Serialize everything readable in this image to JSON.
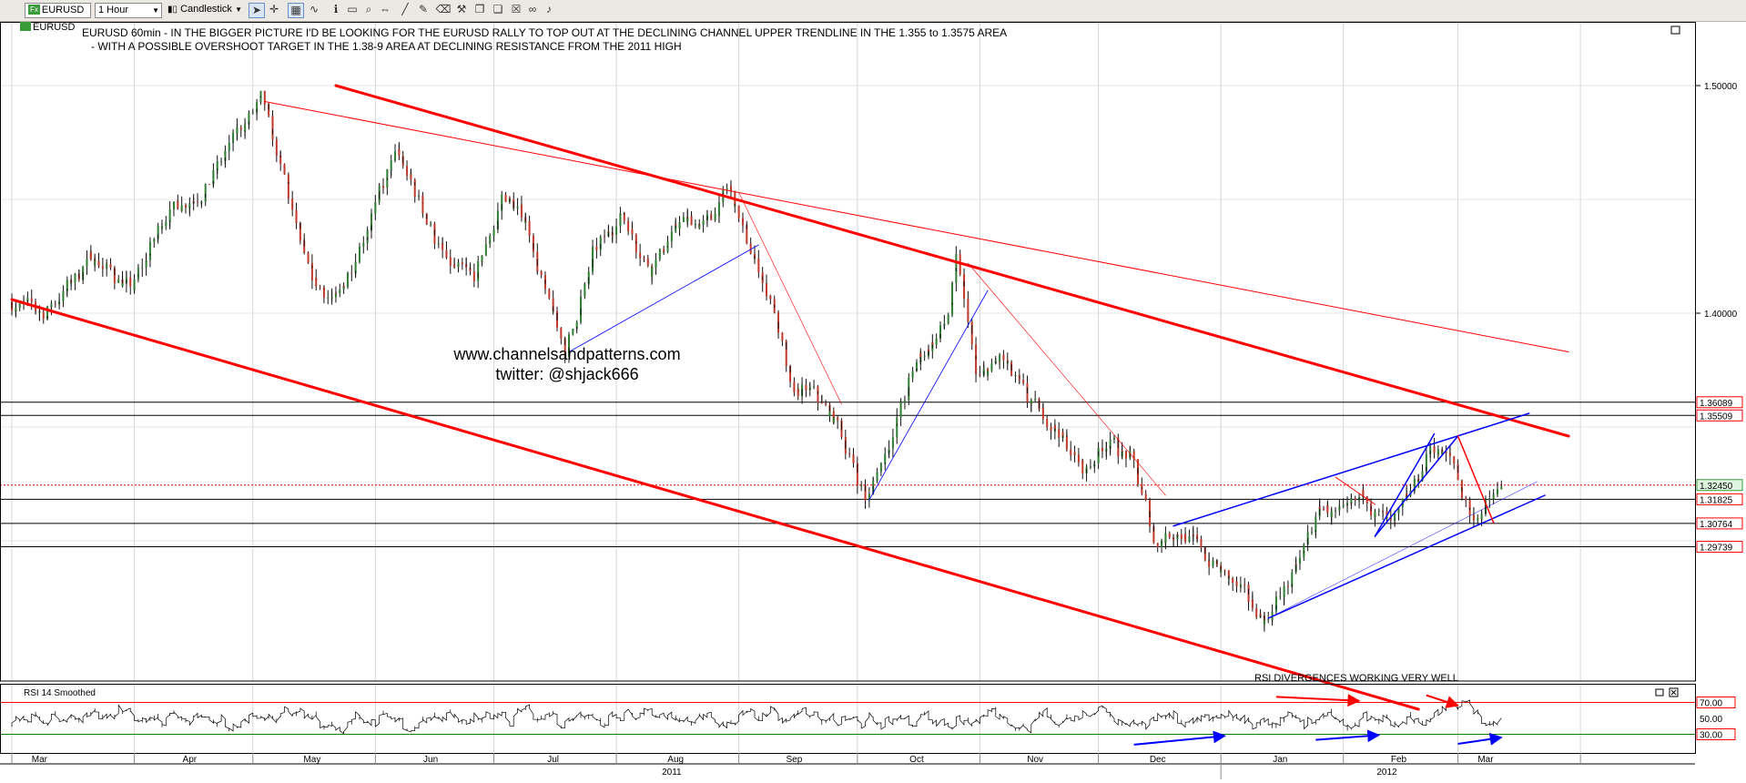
{
  "toolbar": {
    "symbol": "EURUSD",
    "interval": "1 Hour",
    "chart_style": "Candlestick",
    "symbol_label": "EURUSD"
  },
  "annotations": {
    "headline_1": "EURUSD 60min - IN THE BIGGER PICTURE I'D BE LOOKING FOR THE EURUSD RALLY TO TOP OUT AT THE DECLINING CHANNEL UPPER TRENDLINE IN THE 1.355 to 1.3575 AREA",
    "headline_2": "-  WITH A POSSIBLE OVERSHOOT TARGET IN THE 1.38-9 AREA AT DECLINING RESISTANCE FROM THE 2011 HIGH",
    "website": "www.channelsandpatterns.com",
    "twitter": "twitter: @shjack666",
    "rsi_note": "RSI DIVERGENCES WORKING VERY WELL"
  },
  "colors": {
    "bull": "#2e7d32",
    "bear": "#c0392b",
    "channel": "#ff0000",
    "trend": "#0000ff",
    "rsi_upper": "#ff0000",
    "rsi_lower": "#008000"
  },
  "chart_data": [
    {
      "type": "candlestick",
      "y_axis": {
        "min": 1.25,
        "max": 1.51,
        "ticks": [
          {
            "value": 1.5,
            "label": "1.50000"
          },
          {
            "value": 1.4,
            "label": "1.40000"
          }
        ]
      },
      "x_axis": {
        "months": [
          "Mar",
          "Apr",
          "May",
          "Jun",
          "Jul",
          "Aug",
          "Sep",
          "Oct",
          "Nov",
          "Dec",
          "Jan",
          "Feb",
          "Mar"
        ],
        "years": [
          "2011",
          "2012"
        ]
      },
      "close_path": [
        {
          "date": "2011-03-01",
          "close": 1.405
        },
        {
          "date": "2011-03-10",
          "close": 1.4
        },
        {
          "date": "2011-03-22",
          "close": 1.425
        },
        {
          "date": "2011-04-01",
          "close": 1.41
        },
        {
          "date": "2011-04-10",
          "close": 1.445
        },
        {
          "date": "2011-04-20",
          "close": 1.455
        },
        {
          "date": "2011-04-28",
          "close": 1.48
        },
        {
          "date": "2011-05-04",
          "close": 1.493
        },
        {
          "date": "2011-05-10",
          "close": 1.455
        },
        {
          "date": "2011-05-16",
          "close": 1.415
        },
        {
          "date": "2011-05-23",
          "close": 1.405
        },
        {
          "date": "2011-06-01",
          "close": 1.445
        },
        {
          "date": "2011-06-07",
          "close": 1.47
        },
        {
          "date": "2011-06-14",
          "close": 1.445
        },
        {
          "date": "2011-06-20",
          "close": 1.42
        },
        {
          "date": "2011-06-27",
          "close": 1.415
        },
        {
          "date": "2011-07-04",
          "close": 1.452
        },
        {
          "date": "2011-07-10",
          "close": 1.44
        },
        {
          "date": "2011-07-15",
          "close": 1.405
        },
        {
          "date": "2011-07-20",
          "close": 1.383
        },
        {
          "date": "2011-07-27",
          "close": 1.425
        },
        {
          "date": "2011-08-03",
          "close": 1.445
        },
        {
          "date": "2011-08-10",
          "close": 1.42
        },
        {
          "date": "2011-08-18",
          "close": 1.44
        },
        {
          "date": "2011-08-25",
          "close": 1.44
        },
        {
          "date": "2011-08-30",
          "close": 1.455
        },
        {
          "date": "2011-09-05",
          "close": 1.425
        },
        {
          "date": "2011-09-10",
          "close": 1.405
        },
        {
          "date": "2011-09-15",
          "close": 1.365
        },
        {
          "date": "2011-09-20",
          "close": 1.365
        },
        {
          "date": "2011-09-27",
          "close": 1.35
        },
        {
          "date": "2011-10-04",
          "close": 1.318
        },
        {
          "date": "2011-10-10",
          "close": 1.345
        },
        {
          "date": "2011-10-17",
          "close": 1.38
        },
        {
          "date": "2011-10-24",
          "close": 1.395
        },
        {
          "date": "2011-10-27",
          "close": 1.422
        },
        {
          "date": "2011-11-01",
          "close": 1.37
        },
        {
          "date": "2011-11-07",
          "close": 1.38
        },
        {
          "date": "2011-11-14",
          "close": 1.36
        },
        {
          "date": "2011-11-21",
          "close": 1.35
        },
        {
          "date": "2011-11-28",
          "close": 1.33
        },
        {
          "date": "2011-12-04",
          "close": 1.345
        },
        {
          "date": "2011-12-10",
          "close": 1.335
        },
        {
          "date": "2011-12-16",
          "close": 1.3
        },
        {
          "date": "2011-12-22",
          "close": 1.305
        },
        {
          "date": "2011-12-28",
          "close": 1.295
        },
        {
          "date": "2012-01-05",
          "close": 1.28
        },
        {
          "date": "2012-01-13",
          "close": 1.265
        },
        {
          "date": "2012-01-20",
          "close": 1.285
        },
        {
          "date": "2012-01-27",
          "close": 1.315
        },
        {
          "date": "2012-02-02",
          "close": 1.31
        },
        {
          "date": "2012-02-07",
          "close": 1.32
        },
        {
          "date": "2012-02-14",
          "close": 1.305
        },
        {
          "date": "2012-02-20",
          "close": 1.325
        },
        {
          "date": "2012-02-24",
          "close": 1.342
        },
        {
          "date": "2012-02-29",
          "close": 1.335
        },
        {
          "date": "2012-03-05",
          "close": 1.31
        },
        {
          "date": "2012-03-09",
          "close": 1.315
        },
        {
          "date": "2012-03-12",
          "close": 1.322
        }
      ],
      "price_levels": [
        {
          "value": 1.36089,
          "label": "1.36089",
          "style": "black"
        },
        {
          "value": 1.35509,
          "label": "1.35509",
          "style": "black"
        },
        {
          "value": 1.3245,
          "label": "1.32450",
          "style": "red-dotted"
        },
        {
          "value": 1.31825,
          "label": "1.31825",
          "style": "black"
        },
        {
          "value": 1.30764,
          "label": "1.30764",
          "style": "black"
        },
        {
          "value": 1.29739,
          "label": "1.29739",
          "style": "black"
        }
      ],
      "trendlines": [
        {
          "role": "channel-upper",
          "color": "red",
          "from": [
            "2011-05-22",
            1.5
          ],
          "to": [
            "2012-03-29",
            1.346
          ],
          "width": 3
        },
        {
          "role": "channel-lower",
          "color": "red",
          "from": [
            "2011-03-01",
            1.406
          ],
          "to": [
            "2012-02-20",
            1.226
          ],
          "width": 3
        },
        {
          "role": "resistance-2011-high",
          "color": "red",
          "from": [
            "2011-05-04",
            1.493
          ],
          "to": [
            "2012-03-29",
            1.383
          ],
          "width": 1
        },
        {
          "role": "minor-down",
          "color": "red",
          "from": [
            "2011-09-01",
            1.453
          ],
          "to": [
            "2011-09-27",
            1.36
          ],
          "width": 0.6
        },
        {
          "role": "minor-down",
          "color": "red",
          "from": [
            "2011-10-29",
            1.422
          ],
          "to": [
            "2011-12-18",
            1.32
          ],
          "width": 0.6
        },
        {
          "role": "rising-support",
          "color": "blue",
          "from": [
            "2011-07-20",
            1.383
          ],
          "to": [
            "2011-09-06",
            1.43
          ],
          "width": 0.8
        },
        {
          "role": "rising-support",
          "color": "blue",
          "from": [
            "2011-10-04",
            1.318
          ],
          "to": [
            "2011-11-03",
            1.41
          ],
          "width": 0.8
        },
        {
          "role": "rising-channel-upper",
          "color": "blue",
          "from": [
            "2011-12-20",
            1.3065
          ],
          "to": [
            "2012-03-19",
            1.356
          ],
          "width": 1.5
        },
        {
          "role": "rising-channel-lower",
          "color": "blue",
          "from": [
            "2012-01-13",
            1.266
          ],
          "to": [
            "2012-03-23",
            1.32
          ],
          "width": 1.5
        },
        {
          "role": "thin-rising",
          "color": "blue",
          "from": [
            "2012-01-13",
            1.266
          ],
          "to": [
            "2012-03-21",
            1.326
          ],
          "width": 0.5
        },
        {
          "role": "leg",
          "color": "blue",
          "from": [
            "2012-02-09",
            1.302
          ],
          "to": [
            "2012-02-24",
            1.347
          ],
          "width": 1.5
        },
        {
          "role": "leg",
          "color": "blue",
          "from": [
            "2012-02-09",
            1.302
          ],
          "to": [
            "2012-03-01",
            1.346
          ],
          "width": 1.5
        },
        {
          "role": "leg",
          "color": "red",
          "from": [
            "2012-01-30",
            1.328
          ],
          "to": [
            "2012-02-09",
            1.316
          ],
          "width": 1
        },
        {
          "role": "leg",
          "color": "red",
          "from": [
            "2012-03-01",
            1.346
          ],
          "to": [
            "2012-03-10",
            1.308
          ],
          "width": 1.5
        }
      ]
    },
    {
      "type": "line",
      "title": "RSI 14 Smoothed",
      "y_axis": {
        "min": 10,
        "max": 90,
        "ticks": [
          {
            "value": 70,
            "label": "70.00"
          },
          {
            "value": 50,
            "label": "50.00"
          },
          {
            "value": 30,
            "label": "30.00"
          }
        ]
      },
      "levels": [
        {
          "value": 70,
          "color": "red"
        },
        {
          "value": 30,
          "color": "green"
        }
      ],
      "divergence_arrows": [
        {
          "color": "red",
          "from": [
            "2012-01-15",
            77
          ],
          "to": [
            "2012-02-05",
            72
          ]
        },
        {
          "color": "red",
          "from": [
            "2012-02-22",
            79
          ],
          "to": [
            "2012-03-01",
            66
          ]
        },
        {
          "color": "blue",
          "from": [
            "2011-12-10",
            17
          ],
          "to": [
            "2012-01-02",
            28
          ]
        },
        {
          "color": "blue",
          "from": [
            "2012-01-25",
            23
          ],
          "to": [
            "2012-02-10",
            29
          ]
        },
        {
          "color": "blue",
          "from": [
            "2012-03-01",
            18
          ],
          "to": [
            "2012-03-12",
            26
          ]
        }
      ]
    }
  ]
}
